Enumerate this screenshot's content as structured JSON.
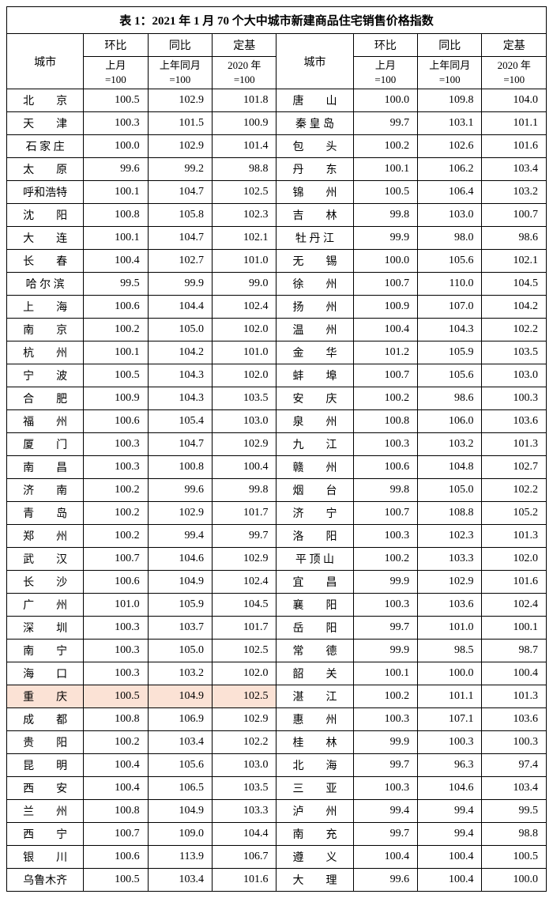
{
  "title": "表 1：2021 年 1 月 70 个大中城市新建商品住宅销售价格指数",
  "headers": {
    "city": "城市",
    "h1": "环比",
    "h2": "同比",
    "h3": "定基",
    "s1a": "上月",
    "s1b": "=100",
    "s2a": "上年同月",
    "s2b": "=100",
    "s3a": "2020 年",
    "s3b": "=100"
  },
  "highlight_city": "重　　庆",
  "colors": {
    "highlight": "#fbe2d5",
    "border": "#000000",
    "background": "#ffffff",
    "text": "#000000"
  },
  "left": [
    {
      "c": "北　　京",
      "v1": "100.5",
      "v2": "102.9",
      "v3": "101.8"
    },
    {
      "c": "天　　津",
      "v1": "100.3",
      "v2": "101.5",
      "v3": "100.9"
    },
    {
      "c": "石 家 庄",
      "v1": "100.0",
      "v2": "102.9",
      "v3": "101.4"
    },
    {
      "c": "太　　原",
      "v1": "99.6",
      "v2": "99.2",
      "v3": "98.8"
    },
    {
      "c": "呼和浩特",
      "v1": "100.1",
      "v2": "104.7",
      "v3": "102.5"
    },
    {
      "c": "沈　　阳",
      "v1": "100.8",
      "v2": "105.8",
      "v3": "102.3"
    },
    {
      "c": "大　　连",
      "v1": "100.1",
      "v2": "104.7",
      "v3": "102.1"
    },
    {
      "c": "长　　春",
      "v1": "100.4",
      "v2": "102.7",
      "v3": "101.0"
    },
    {
      "c": "哈 尔 滨",
      "v1": "99.5",
      "v2": "99.9",
      "v3": "99.0"
    },
    {
      "c": "上　　海",
      "v1": "100.6",
      "v2": "104.4",
      "v3": "102.4"
    },
    {
      "c": "南　　京",
      "v1": "100.2",
      "v2": "105.0",
      "v3": "102.0"
    },
    {
      "c": "杭　　州",
      "v1": "100.1",
      "v2": "104.2",
      "v3": "101.0"
    },
    {
      "c": "宁　　波",
      "v1": "100.5",
      "v2": "104.3",
      "v3": "102.0"
    },
    {
      "c": "合　　肥",
      "v1": "100.9",
      "v2": "104.3",
      "v3": "103.5"
    },
    {
      "c": "福　　州",
      "v1": "100.6",
      "v2": "105.4",
      "v3": "103.0"
    },
    {
      "c": "厦　　门",
      "v1": "100.3",
      "v2": "104.7",
      "v3": "102.9"
    },
    {
      "c": "南　　昌",
      "v1": "100.3",
      "v2": "100.8",
      "v3": "100.4"
    },
    {
      "c": "济　　南",
      "v1": "100.2",
      "v2": "99.6",
      "v3": "99.8"
    },
    {
      "c": "青　　岛",
      "v1": "100.2",
      "v2": "102.9",
      "v3": "101.7"
    },
    {
      "c": "郑　　州",
      "v1": "100.2",
      "v2": "99.4",
      "v3": "99.7"
    },
    {
      "c": "武　　汉",
      "v1": "100.7",
      "v2": "104.6",
      "v3": "102.9"
    },
    {
      "c": "长　　沙",
      "v1": "100.6",
      "v2": "104.9",
      "v3": "102.4"
    },
    {
      "c": "广　　州",
      "v1": "101.0",
      "v2": "105.9",
      "v3": "104.5"
    },
    {
      "c": "深　　圳",
      "v1": "100.3",
      "v2": "103.7",
      "v3": "101.7"
    },
    {
      "c": "南　　宁",
      "v1": "100.3",
      "v2": "105.0",
      "v3": "102.5"
    },
    {
      "c": "海　　口",
      "v1": "100.3",
      "v2": "103.2",
      "v3": "102.0"
    },
    {
      "c": "重　　庆",
      "v1": "100.5",
      "v2": "104.9",
      "v3": "102.5"
    },
    {
      "c": "成　　都",
      "v1": "100.8",
      "v2": "106.9",
      "v3": "102.9"
    },
    {
      "c": "贵　　阳",
      "v1": "100.2",
      "v2": "103.4",
      "v3": "102.2"
    },
    {
      "c": "昆　　明",
      "v1": "100.4",
      "v2": "105.6",
      "v3": "103.0"
    },
    {
      "c": "西　　安",
      "v1": "100.4",
      "v2": "106.5",
      "v3": "103.5"
    },
    {
      "c": "兰　　州",
      "v1": "100.8",
      "v2": "104.9",
      "v3": "103.3"
    },
    {
      "c": "西　　宁",
      "v1": "100.7",
      "v2": "109.0",
      "v3": "104.4"
    },
    {
      "c": "银　　川",
      "v1": "100.6",
      "v2": "113.9",
      "v3": "106.7"
    },
    {
      "c": "乌鲁木齐",
      "v1": "100.5",
      "v2": "103.4",
      "v3": "101.6"
    }
  ],
  "right": [
    {
      "c": "唐　　山",
      "v1": "100.0",
      "v2": "109.8",
      "v3": "104.0"
    },
    {
      "c": "秦 皇 岛",
      "v1": "99.7",
      "v2": "103.1",
      "v3": "101.1"
    },
    {
      "c": "包　　头",
      "v1": "100.2",
      "v2": "102.6",
      "v3": "101.6"
    },
    {
      "c": "丹　　东",
      "v1": "100.1",
      "v2": "106.2",
      "v3": "103.4"
    },
    {
      "c": "锦　　州",
      "v1": "100.5",
      "v2": "106.4",
      "v3": "103.2"
    },
    {
      "c": "吉　　林",
      "v1": "99.8",
      "v2": "103.0",
      "v3": "100.7"
    },
    {
      "c": "牡 丹 江",
      "v1": "99.9",
      "v2": "98.0",
      "v3": "98.6"
    },
    {
      "c": "无　　锡",
      "v1": "100.0",
      "v2": "105.6",
      "v3": "102.1"
    },
    {
      "c": "徐　　州",
      "v1": "100.7",
      "v2": "110.0",
      "v3": "104.5"
    },
    {
      "c": "扬　　州",
      "v1": "100.9",
      "v2": "107.0",
      "v3": "104.2"
    },
    {
      "c": "温　　州",
      "v1": "100.4",
      "v2": "104.3",
      "v3": "102.2"
    },
    {
      "c": "金　　华",
      "v1": "101.2",
      "v2": "105.9",
      "v3": "103.5"
    },
    {
      "c": "蚌　　埠",
      "v1": "100.7",
      "v2": "105.6",
      "v3": "103.0"
    },
    {
      "c": "安　　庆",
      "v1": "100.2",
      "v2": "98.6",
      "v3": "100.3"
    },
    {
      "c": "泉　　州",
      "v1": "100.8",
      "v2": "106.0",
      "v3": "103.6"
    },
    {
      "c": "九　　江",
      "v1": "100.3",
      "v2": "103.2",
      "v3": "101.3"
    },
    {
      "c": "赣　　州",
      "v1": "100.6",
      "v2": "104.8",
      "v3": "102.7"
    },
    {
      "c": "烟　　台",
      "v1": "99.8",
      "v2": "105.0",
      "v3": "102.2"
    },
    {
      "c": "济　　宁",
      "v1": "100.7",
      "v2": "108.8",
      "v3": "105.2"
    },
    {
      "c": "洛　　阳",
      "v1": "100.3",
      "v2": "102.3",
      "v3": "101.3"
    },
    {
      "c": "平 顶 山",
      "v1": "100.2",
      "v2": "103.3",
      "v3": "102.0"
    },
    {
      "c": "宜　　昌",
      "v1": "99.9",
      "v2": "102.9",
      "v3": "101.6"
    },
    {
      "c": "襄　　阳",
      "v1": "100.3",
      "v2": "103.6",
      "v3": "102.4"
    },
    {
      "c": "岳　　阳",
      "v1": "99.7",
      "v2": "101.0",
      "v3": "100.1"
    },
    {
      "c": "常　　德",
      "v1": "99.9",
      "v2": "98.5",
      "v3": "98.7"
    },
    {
      "c": "韶　　关",
      "v1": "100.1",
      "v2": "100.0",
      "v3": "100.4"
    },
    {
      "c": "湛　　江",
      "v1": "100.2",
      "v2": "101.1",
      "v3": "101.3"
    },
    {
      "c": "惠　　州",
      "v1": "100.3",
      "v2": "107.1",
      "v3": "103.6"
    },
    {
      "c": "桂　　林",
      "v1": "99.9",
      "v2": "100.3",
      "v3": "100.3"
    },
    {
      "c": "北　　海",
      "v1": "99.7",
      "v2": "96.3",
      "v3": "97.4"
    },
    {
      "c": "三　　亚",
      "v1": "100.3",
      "v2": "104.6",
      "v3": "103.4"
    },
    {
      "c": "泸　　州",
      "v1": "99.4",
      "v2": "99.4",
      "v3": "99.5"
    },
    {
      "c": "南　　充",
      "v1": "99.7",
      "v2": "99.4",
      "v3": "98.8"
    },
    {
      "c": "遵　　义",
      "v1": "100.4",
      "v2": "100.4",
      "v3": "100.5"
    },
    {
      "c": "大　　理",
      "v1": "99.6",
      "v2": "100.4",
      "v3": "100.0"
    }
  ]
}
